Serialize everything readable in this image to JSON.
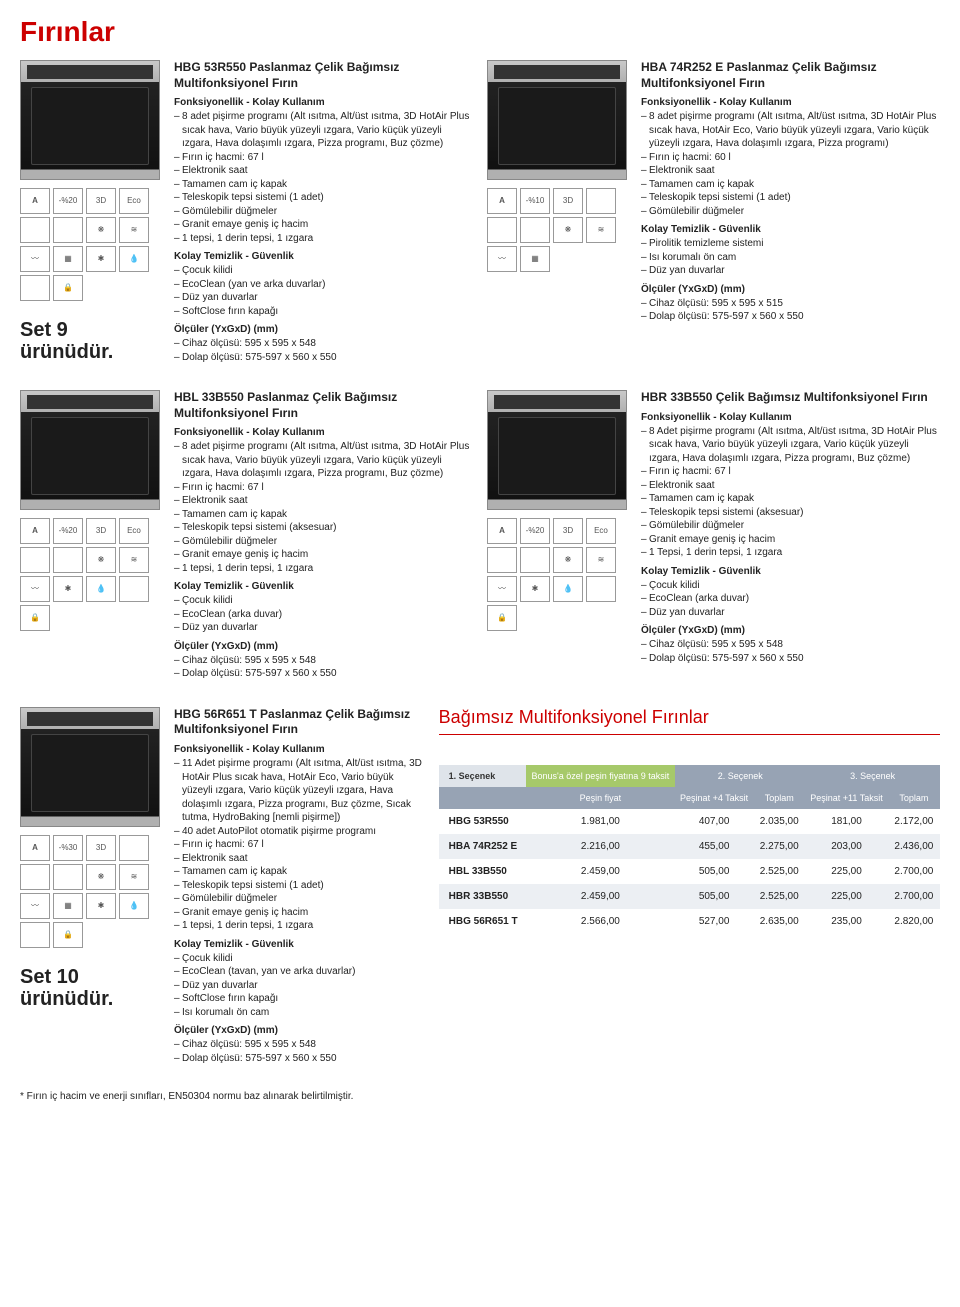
{
  "page": {
    "title": "Fırınlar",
    "footnote": "* Fırın iç hacim ve enerji sınıfları, EN50304 normu baz alınarak belirtilmiştir."
  },
  "sets": {
    "set9": "Set 9 ürünüdür.",
    "set10": "Set 10 ürünüdür."
  },
  "icons": {
    "energyA": "A",
    "pct20": "-%20",
    "pct10": "-%10",
    "pct30": "-%30",
    "threeD": "3D",
    "eco": "Eco",
    "lock": "🔒",
    "fan": "❋",
    "wave": "≋",
    "heat": "〰",
    "drop": "💧",
    "grill": "▦",
    "star": "✱"
  },
  "products": [
    {
      "id": "p1",
      "title": "HBG 53R550 Paslanmaz Çelik Bağımsız Multifonksiyonel Fırın",
      "sections": [
        {
          "head": "Fonksiyonellik - Kolay Kullanım",
          "items": [
            "8 adet pişirme programı (Alt ısıtma, Alt/üst ısıtma, 3D HotAir Plus sıcak hava, Vario büyük yüzeyli ızgara, Vario küçük yüzeyli ızgara, Hava dolaşımlı ızgara, Pizza programı, Buz çözme)",
            "Fırın iç hacmi: 67 l",
            "Elektronik saat",
            "Tamamen cam iç kapak",
            "Teleskopik tepsi sistemi (1 adet)",
            "Gömülebilir düğmeler",
            "Granit emaye geniş iç hacim",
            "1 tepsi, 1 derin tepsi, 1 ızgara"
          ]
        },
        {
          "head": "Kolay Temizlik - Güvenlik",
          "items": [
            "Çocuk kilidi",
            "EcoClean (yan ve arka duvarlar)",
            "Düz yan duvarlar",
            "SoftClose fırın kapağı"
          ]
        },
        {
          "head": "Ölçüler (YxGxD) (mm)",
          "items": [
            "Cihaz ölçüsü: 595 x 595 x 548",
            "Dolap ölçüsü: 575-597 x 560 x 550"
          ]
        }
      ],
      "iconset": [
        "energyA",
        "pct20",
        "threeD",
        "eco",
        "",
        "",
        "fan",
        "wave",
        "heat",
        "grill",
        "star",
        "drop",
        "",
        "lock"
      ]
    },
    {
      "id": "p2",
      "title": "HBA 74R252 E Paslanmaz Çelik Bağımsız Multifonksiyonel Fırın",
      "sections": [
        {
          "head": "Fonksiyonellik - Kolay Kullanım",
          "items": [
            "8 adet pişirme programı (Alt ısıtma, Alt/üst ısıtma, 3D HotAir Plus sıcak hava, HotAir Eco, Vario büyük yüzeyli ızgara, Vario küçük yüzeyli ızgara, Hava dolaşımlı ızgara, Pizza programı)",
            "Fırın iç hacmi: 60 l",
            "Elektronik saat",
            "Tamamen cam iç kapak",
            "Teleskopik tepsi sistemi (1 adet)",
            "Gömülebilir düğmeler"
          ]
        },
        {
          "head": "Kolay Temizlik - Güvenlik",
          "items": [
            "Pirolitik temizleme sistemi",
            "Isı korumalı ön cam",
            "Düz yan duvarlar"
          ]
        },
        {
          "head": "Ölçüler (YxGxD) (mm)",
          "items": [
            "Cihaz ölçüsü: 595 x 595 x 515",
            "Dolap ölçüsü: 575-597 x 560 x 550"
          ]
        }
      ],
      "iconset": [
        "energyA",
        "pct10",
        "threeD",
        "",
        "",
        "",
        "fan",
        "wave",
        "heat",
        "grill"
      ]
    },
    {
      "id": "p3",
      "title": "HBL 33B550 Paslanmaz Çelik Bağımsız Multifonksiyonel Fırın",
      "sections": [
        {
          "head": "Fonksiyonellik - Kolay Kullanım",
          "items": [
            "8 adet pişirme programı (Alt ısıtma, Alt/üst ısıtma, 3D HotAir Plus sıcak hava, Vario büyük yüzeyli ızgara, Vario küçük yüzeyli ızgara, Hava dolaşımlı ızgara, Pizza programı, Buz çözme)",
            "Fırın iç hacmi: 67 l",
            "Elektronik saat",
            "Tamamen cam iç kapak",
            "Teleskopik tepsi sistemi (aksesuar)",
            "Gömülebilir düğmeler",
            "Granit emaye geniş iç hacim",
            "1 tepsi, 1 derin tepsi, 1 ızgara"
          ]
        },
        {
          "head": "Kolay Temizlik - Güvenlik",
          "items": [
            "Çocuk kilidi",
            "EcoClean (arka duvar)",
            "Düz yan duvarlar"
          ]
        },
        {
          "head": "Ölçüler (YxGxD) (mm)",
          "items": [
            "Cihaz ölçüsü: 595 x 595 x 548",
            "Dolap ölçüsü: 575-597 x 560 x 550"
          ]
        }
      ],
      "iconset": [
        "energyA",
        "pct20",
        "threeD",
        "eco",
        "",
        "",
        "fan",
        "wave",
        "heat",
        "star",
        "drop",
        "",
        "lock"
      ]
    },
    {
      "id": "p4",
      "title": "HBR 33B550 Çelik Bağımsız Multifonksiyonel Fırın",
      "sections": [
        {
          "head": "Fonksiyonellik - Kolay Kullanım",
          "items": [
            "8 Adet pişirme programı (Alt ısıtma, Alt/üst ısıtma, 3D HotAir Plus sıcak hava, Vario büyük yüzeyli ızgara, Vario küçük yüzeyli ızgara, Hava dolaşımlı ızgara, Pizza programı, Buz çözme)",
            "Fırın iç hacmi: 67 l",
            "Elektronik saat",
            "Tamamen cam iç kapak",
            "Teleskopik tepsi sistemi (aksesuar)",
            "Gömülebilir düğmeler",
            "Granit emaye geniş iç hacim",
            "1 Tepsi, 1 derin tepsi, 1 ızgara"
          ]
        },
        {
          "head": "Kolay Temizlik - Güvenlik",
          "items": [
            "Çocuk kilidi",
            "EcoClean (arka duvar)",
            "Düz yan duvarlar"
          ]
        },
        {
          "head": "Ölçüler (YxGxD) (mm)",
          "items": [
            "Cihaz ölçüsü: 595 x 595 x 548",
            "Dolap ölçüsü: 575-597 x 560 x 550"
          ]
        }
      ],
      "iconset": [
        "energyA",
        "pct20",
        "threeD",
        "eco",
        "",
        "",
        "fan",
        "wave",
        "heat",
        "star",
        "drop",
        "",
        "lock"
      ]
    },
    {
      "id": "p5",
      "title": "HBG 56R651 T Paslanmaz Çelik Bağımsız Multifonksiyonel Fırın",
      "sections": [
        {
          "head": "Fonksiyonellik - Kolay Kullanım",
          "items": [
            "11 Adet pişirme programı (Alt ısıtma, Alt/üst ısıtma, 3D HotAir Plus sıcak hava, HotAir Eco, Vario büyük yüzeyli ızgara, Vario küçük yüzeyli ızgara, Hava dolaşımlı ızgara, Pizza programı, Buz çözme, Sıcak tutma, HydroBaking [nemli pişirme])",
            "40 adet AutoPilot otomatik pişirme programı",
            "Fırın iç hacmi: 67 l",
            "Elektronik saat",
            "Tamamen cam iç kapak",
            "Teleskopik tepsi sistemi (1 adet)",
            "Gömülebilir düğmeler",
            "Granit emaye geniş iç hacim",
            "1 tepsi, 1 derin tepsi, 1 ızgara"
          ]
        },
        {
          "head": "Kolay Temizlik - Güvenlik",
          "items": [
            "Çocuk kilidi",
            "EcoClean (tavan, yan ve arka duvarlar)",
            "Düz yan duvarlar",
            "SoftClose fırın kapağı",
            "Isı korumalı ön cam"
          ]
        },
        {
          "head": "Ölçüler (YxGxD) (mm)",
          "items": [
            "Cihaz ölçüsü: 595 x 595 x 548",
            "Dolap ölçüsü: 575-597 x 560 x 550"
          ]
        }
      ],
      "iconset": [
        "energyA",
        "pct30",
        "threeD",
        "",
        "",
        "",
        "fan",
        "wave",
        "heat",
        "grill",
        "star",
        "drop",
        "",
        "lock"
      ]
    }
  ],
  "priceTable": {
    "title": "Bağımsız Multifonksiyonel Fırınlar",
    "groupHeads": [
      "1. Seçenek",
      "Bonus'a özel peşin fiyatına 9 taksit",
      "2. Seçenek",
      "3. Seçenek"
    ],
    "subHeads": [
      "Peşin fiyat",
      "Peşinat +4 Taksit",
      "Toplam",
      "Peşinat +11 Taksit",
      "Toplam"
    ],
    "rows": [
      {
        "name": "HBG 53R550",
        "v": [
          "1.981,00",
          "407,00",
          "2.035,00",
          "181,00",
          "2.172,00"
        ]
      },
      {
        "name": "HBA 74R252 E",
        "v": [
          "2.216,00",
          "455,00",
          "2.275,00",
          "203,00",
          "2.436,00"
        ]
      },
      {
        "name": "HBL 33B550",
        "v": [
          "2.459,00",
          "505,00",
          "2.525,00",
          "225,00",
          "2.700,00"
        ]
      },
      {
        "name": "HBR 33B550",
        "v": [
          "2.459,00",
          "505,00",
          "2.525,00",
          "225,00",
          "2.700,00"
        ]
      },
      {
        "name": "HBG 56R651 T",
        "v": [
          "2.566,00",
          "527,00",
          "2.635,00",
          "235,00",
          "2.820,00"
        ]
      }
    ]
  }
}
